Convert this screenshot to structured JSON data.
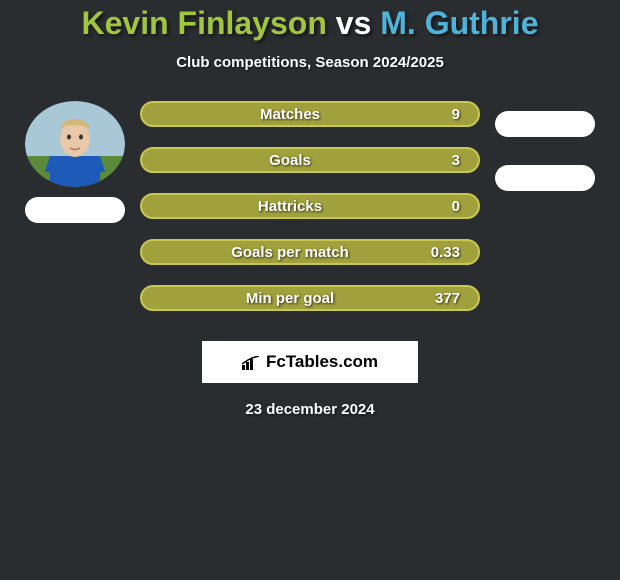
{
  "background_color": "#2a2d30",
  "title": {
    "player1": "Kevin Finlayson",
    "vs": "vs",
    "player2": "M. Guthrie",
    "player1_color": "#a0c63c",
    "vs_color": "#ffffff",
    "player2_color": "#4fb3d9",
    "fontsize": 32
  },
  "subtitle": {
    "text": "Club competitions, Season 2024/2025",
    "fontsize": 15
  },
  "player_left": {
    "avatar_bg_sky": "#a8c8d8",
    "avatar_bg_grass": "#5a8a3a",
    "shirt_color": "#1e5bb8",
    "skin_color": "#e8c8a8",
    "hair_color": "#d4b878"
  },
  "pill_color": "#ffffff",
  "stats": [
    {
      "label": "Matches",
      "value": "9",
      "bg": "#a0a03c",
      "border": "#c8c850"
    },
    {
      "label": "Goals",
      "value": "3",
      "bg": "#a0a03c",
      "border": "#c8c850"
    },
    {
      "label": "Hattricks",
      "value": "0",
      "bg": "#a0a03c",
      "border": "#c8c850"
    },
    {
      "label": "Goals per match",
      "value": "0.33",
      "bg": "#a0a03c",
      "border": "#c8c850"
    },
    {
      "label": "Min per goal",
      "value": "377",
      "bg": "#a0a03c",
      "border": "#c8c850"
    }
  ],
  "stat_bar": {
    "height": 26,
    "border_radius": 18,
    "label_fontsize": 15
  },
  "logo": {
    "text": "FcTables.com",
    "bg": "#ffffff",
    "text_color": "#000000",
    "icon_color": "#000000"
  },
  "footer_date": "23 december 2024"
}
